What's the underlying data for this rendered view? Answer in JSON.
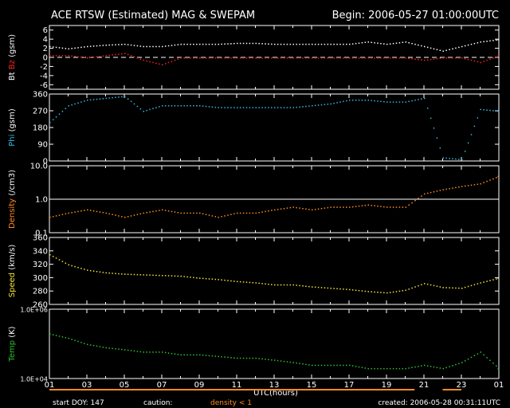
{
  "header": {
    "title": "ACE RTSW (Estimated) MAG & SWEPAM",
    "begin": "Begin: 2006-05-27 01:00:00UTC"
  },
  "footer": {
    "start_doy": "start DOY: 147",
    "caution": "caution:",
    "density_note": "density < 1",
    "created": "created: 2006-05-28 00:31:11UTC"
  },
  "colors": {
    "background": "#000000",
    "axis": "#ffffff",
    "bt": "#ffffff",
    "bz": "#ff2020",
    "phi": "#33b8e0",
    "density": "#ff8a20",
    "speed": "#f2e23a",
    "temp": "#2fc02f",
    "caution": "#ff8a20"
  },
  "chart_data": {
    "type": "scatter",
    "xlabel": "UTC(hours)",
    "x_ticks": [
      "01",
      "03",
      "05",
      "07",
      "09",
      "11",
      "13",
      "15",
      "17",
      "19",
      "21",
      "23",
      "01"
    ],
    "xlim": [
      1,
      25
    ],
    "panels": [
      {
        "id": "mag",
        "ylabel_parts": [
          {
            "text": "Bt",
            "color": "#ffffff"
          },
          {
            "text": " ",
            "color": "#ffffff"
          },
          {
            "text": "Bz",
            "color": "#ff2020"
          },
          {
            "text": " (gsm)",
            "color": "#ffffff"
          }
        ],
        "ylim": [
          -7,
          7
        ],
        "y_ticks": [
          "6",
          "4",
          "2",
          "0",
          "-2",
          "-4",
          "-6"
        ],
        "y_tick_values": [
          6,
          4,
          2,
          0,
          -2,
          -4,
          -6
        ],
        "zero_line": 0,
        "series": [
          {
            "name": "Bt",
            "color": "#ffffff",
            "x": [
              1,
              2,
              3,
              4,
              5,
              6,
              7,
              8,
              9,
              10,
              11,
              12,
              13,
              14,
              15,
              16,
              17,
              18,
              19,
              20,
              21,
              22,
              23,
              24,
              25
            ],
            "values": [
              2.5,
              2.0,
              2.5,
              2.8,
              3.0,
              2.5,
              2.5,
              3.0,
              3.0,
              3.0,
              3.2,
              3.2,
              3.0,
              3.0,
              3.0,
              3.0,
              3.0,
              3.5,
              3.0,
              3.5,
              2.5,
              1.5,
              2.5,
              3.5,
              4.0
            ]
          },
          {
            "name": "Bz",
            "color": "#ff2020",
            "x": [
              1,
              2,
              3,
              4,
              5,
              6,
              7,
              8,
              9,
              10,
              11,
              12,
              13,
              14,
              15,
              16,
              17,
              18,
              19,
              20,
              21,
              22,
              23,
              24,
              25
            ],
            "values": [
              0.5,
              0.5,
              0.0,
              0.5,
              1.0,
              -0.5,
              -1.5,
              0.0,
              0.0,
              0.0,
              0.0,
              0.0,
              0.0,
              0.0,
              0.0,
              0.0,
              0.0,
              0.0,
              0.0,
              0.0,
              -0.5,
              0.0,
              0.0,
              -1.0,
              0.5
            ]
          }
        ]
      },
      {
        "id": "phi",
        "ylabel_parts": [
          {
            "text": "Phi",
            "color": "#33b8e0"
          },
          {
            "text": " (gsm)",
            "color": "#ffffff"
          }
        ],
        "ylim": [
          0,
          360
        ],
        "y_ticks": [
          "360",
          "270",
          "180",
          "90",
          "0"
        ],
        "y_tick_values": [
          360,
          270,
          180,
          90,
          0
        ],
        "series": [
          {
            "name": "Phi",
            "color": "#33b8e0",
            "x": [
              1,
              2,
              3,
              4,
              5,
              6,
              7,
              8,
              9,
              10,
              11,
              12,
              13,
              14,
              15,
              16,
              17,
              18,
              19,
              20,
              21,
              22,
              23,
              24,
              25
            ],
            "values": [
              210,
              300,
              330,
              340,
              350,
              270,
              300,
              300,
              300,
              290,
              290,
              290,
              290,
              290,
              300,
              310,
              330,
              330,
              320,
              320,
              340,
              20,
              10,
              280,
              270
            ]
          }
        ]
      },
      {
        "id": "density",
        "ylabel_parts": [
          {
            "text": "Density",
            "color": "#ff8a20"
          },
          {
            "text": " (/cm3)",
            "color": "#ffffff"
          }
        ],
        "log_scale": true,
        "ylim": [
          0.1,
          10.0
        ],
        "y_ticks": [
          "10.0",
          "1.0",
          "0.1"
        ],
        "y_tick_values": [
          10,
          1,
          0.1
        ],
        "reference_line": 1.0,
        "series": [
          {
            "name": "Density",
            "color": "#ff8a20",
            "x": [
              1,
              2,
              3,
              4,
              5,
              6,
              7,
              8,
              9,
              10,
              11,
              12,
              13,
              14,
              15,
              16,
              17,
              18,
              19,
              20,
              21,
              22,
              23,
              24,
              25
            ],
            "values": [
              0.3,
              0.4,
              0.5,
              0.4,
              0.3,
              0.4,
              0.5,
              0.4,
              0.4,
              0.3,
              0.4,
              0.4,
              0.5,
              0.6,
              0.5,
              0.6,
              0.6,
              0.7,
              0.6,
              0.6,
              1.5,
              2.0,
              2.5,
              3.0,
              5.0
            ]
          }
        ]
      },
      {
        "id": "speed",
        "ylabel_parts": [
          {
            "text": "Speed",
            "color": "#f2e23a"
          },
          {
            "text": " (km/s)",
            "color": "#ffffff"
          }
        ],
        "ylim": [
          260,
          360
        ],
        "y_ticks": [
          "360",
          "340",
          "320",
          "300",
          "280",
          "260"
        ],
        "y_tick_values": [
          360,
          340,
          320,
          300,
          280,
          260
        ],
        "series": [
          {
            "name": "Speed",
            "color": "#f2e23a",
            "x": [
              1,
              2,
              3,
              4,
              5,
              6,
              7,
              8,
              9,
              10,
              11,
              12,
              13,
              14,
              15,
              16,
              17,
              18,
              19,
              20,
              21,
              22,
              23,
              24,
              25
            ],
            "values": [
              335,
              320,
              312,
              308,
              306,
              305,
              304,
              303,
              300,
              298,
              295,
              293,
              290,
              290,
              287,
              285,
              283,
              280,
              278,
              282,
              292,
              286,
              285,
              293,
              300
            ]
          }
        ]
      },
      {
        "id": "temp",
        "ylabel_parts": [
          {
            "text": "Temp",
            "color": "#2fc02f"
          },
          {
            "text": " (K)",
            "color": "#ffffff"
          }
        ],
        "log_scale": true,
        "ylim": [
          10000,
          1000000
        ],
        "y_ticks": [
          "1.0E+06",
          "1.0E+04"
        ],
        "y_tick_values": [
          1000000,
          10000
        ],
        "series": [
          {
            "name": "Temp",
            "color": "#2fc02f",
            "x": [
              1,
              2,
              3,
              4,
              5,
              6,
              7,
              8,
              9,
              10,
              11,
              12,
              13,
              14,
              15,
              16,
              17,
              18,
              19,
              20,
              21,
              22,
              23,
              24,
              25
            ],
            "values": [
              200000,
              150000,
              100000,
              80000,
              70000,
              60000,
              60000,
              50000,
              50000,
              45000,
              40000,
              40000,
              35000,
              30000,
              25000,
              25000,
              25000,
              20000,
              20000,
              20000,
              25000,
              20000,
              30000,
              60000,
              20000
            ]
          }
        ]
      }
    ],
    "caution_intervals": [
      [
        1,
        20.5
      ],
      [
        22,
        23
      ]
    ]
  }
}
